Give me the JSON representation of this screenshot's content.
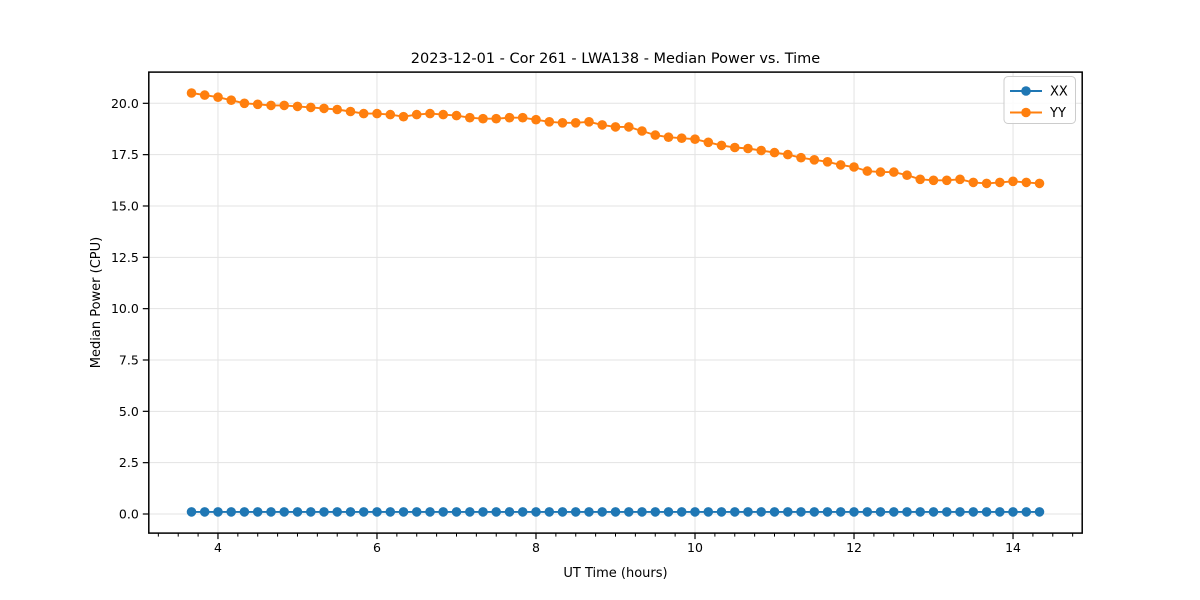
{
  "chart_data": {
    "type": "line",
    "title": "2023-12-01 - Cor 261 - LWA138 - Median Power vs. Time",
    "xlabel": "UT Time (hours)",
    "ylabel": "Median Power (CPU)",
    "xlim": [
      3.13,
      14.87
    ],
    "ylim": [
      -0.93,
      21.52
    ],
    "x_major_ticks": [
      4,
      6,
      8,
      10,
      12,
      14
    ],
    "x_tick_labels": [
      "4",
      "6",
      "8",
      "10",
      "12",
      "14"
    ],
    "x_minor_tick_step": 0.25,
    "y_major_ticks": [
      0.0,
      2.5,
      5.0,
      7.5,
      10.0,
      12.5,
      15.0,
      17.5,
      20.0
    ],
    "y_tick_labels": [
      "0.0",
      "2.5",
      "5.0",
      "7.5",
      "10.0",
      "12.5",
      "15.0",
      "17.5",
      "20.0"
    ],
    "grid": true,
    "legend": {
      "position": "upper right"
    },
    "background_color": "#ffffff",
    "grid_color": "#e3e3e3",
    "x": [
      3.667,
      3.833,
      4.0,
      4.167,
      4.333,
      4.5,
      4.667,
      4.833,
      5.0,
      5.167,
      5.333,
      5.5,
      5.667,
      5.833,
      6.0,
      6.167,
      6.333,
      6.5,
      6.667,
      6.833,
      7.0,
      7.167,
      7.333,
      7.5,
      7.667,
      7.833,
      8.0,
      8.167,
      8.333,
      8.5,
      8.667,
      8.833,
      9.0,
      9.167,
      9.333,
      9.5,
      9.667,
      9.833,
      10.0,
      10.167,
      10.333,
      10.5,
      10.667,
      10.833,
      11.0,
      11.167,
      11.333,
      11.5,
      11.667,
      11.833,
      12.0,
      12.167,
      12.333,
      12.5,
      12.667,
      12.833,
      13.0,
      13.167,
      13.333,
      13.5,
      13.667,
      13.833,
      14.0,
      14.167,
      14.333
    ],
    "series": [
      {
        "name": "XX",
        "color": "#1f77b4",
        "marker": "circle",
        "values": [
          0.1,
          0.1,
          0.1,
          0.1,
          0.1,
          0.1,
          0.1,
          0.1,
          0.1,
          0.1,
          0.1,
          0.1,
          0.1,
          0.1,
          0.1,
          0.1,
          0.1,
          0.1,
          0.1,
          0.1,
          0.1,
          0.1,
          0.1,
          0.1,
          0.1,
          0.1,
          0.1,
          0.1,
          0.1,
          0.1,
          0.1,
          0.1,
          0.1,
          0.1,
          0.1,
          0.1,
          0.1,
          0.1,
          0.1,
          0.1,
          0.1,
          0.1,
          0.1,
          0.1,
          0.1,
          0.1,
          0.1,
          0.1,
          0.1,
          0.1,
          0.1,
          0.1,
          0.1,
          0.1,
          0.1,
          0.1,
          0.1,
          0.1,
          0.1,
          0.1,
          0.1,
          0.1,
          0.1,
          0.1,
          0.1
        ]
      },
      {
        "name": "YY",
        "color": "#ff7f0e",
        "marker": "circle",
        "values": [
          20.5,
          20.4,
          20.3,
          20.15,
          20.0,
          19.95,
          19.9,
          19.9,
          19.85,
          19.8,
          19.75,
          19.7,
          19.6,
          19.5,
          19.5,
          19.45,
          19.35,
          19.45,
          19.5,
          19.45,
          19.4,
          19.3,
          19.25,
          19.25,
          19.3,
          19.3,
          19.2,
          19.1,
          19.05,
          19.05,
          19.1,
          18.95,
          18.85,
          18.85,
          18.65,
          18.45,
          18.35,
          18.3,
          18.25,
          18.1,
          17.95,
          17.85,
          17.8,
          17.7,
          17.6,
          17.5,
          17.35,
          17.25,
          17.15,
          17.0,
          16.9,
          16.7,
          16.65,
          16.65,
          16.5,
          16.3,
          16.25,
          16.25,
          16.3,
          16.15,
          16.1,
          16.15,
          16.2,
          16.15,
          16.1
        ]
      }
    ]
  }
}
